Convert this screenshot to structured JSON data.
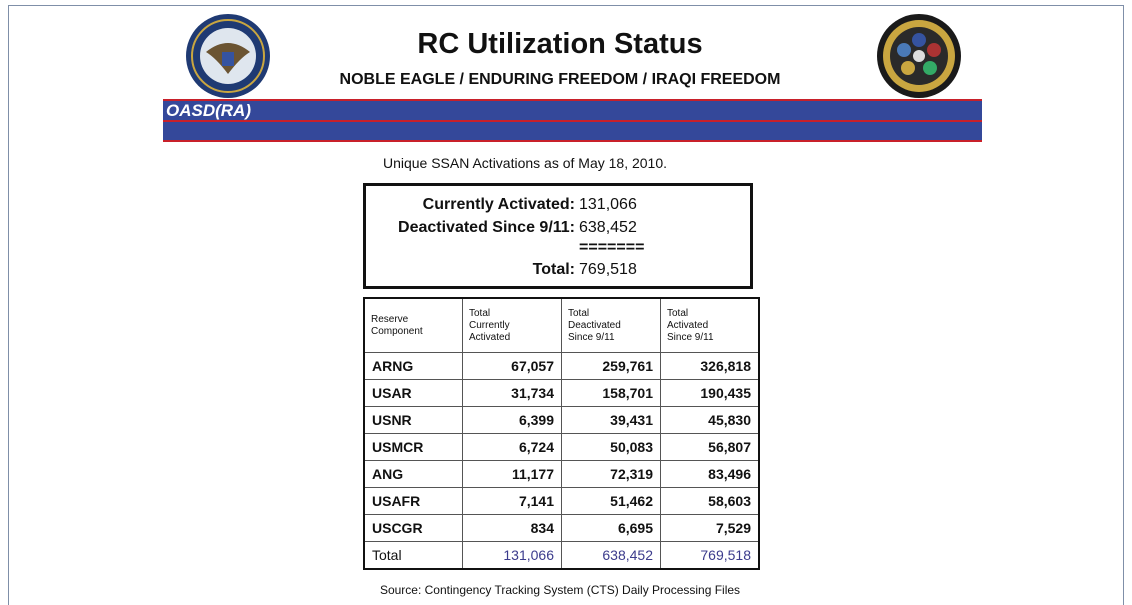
{
  "header": {
    "title": "RC Utilization Status",
    "subtitle": "NOBLE EAGLE / ENDURING FREEDOM / IRAQI FREEDOM",
    "org": "OASD(RA)"
  },
  "intro": "Unique SSAN Activations as of May 18, 2010.",
  "summary": {
    "items": [
      {
        "label": "Currently Activated:",
        "value": "131,066"
      },
      {
        "label": "Deactivated Since 9/11:",
        "value": "638,452"
      }
    ],
    "separator": "=======",
    "total": {
      "label": "Total:",
      "value": "769,518"
    }
  },
  "table": {
    "columns": [
      "Reserve Component",
      "Total Currently Activated",
      "Total Deactivated Since 9/11",
      "Total Activated Since 9/11"
    ],
    "rows": [
      [
        "ARNG",
        "67,057",
        "259,761",
        "326,818"
      ],
      [
        "USAR",
        "31,734",
        "158,701",
        "190,435"
      ],
      [
        "USNR",
        "6,399",
        "39,431",
        "45,830"
      ],
      [
        "USMCR",
        "6,724",
        "50,083",
        "56,807"
      ],
      [
        "ANG",
        "11,177",
        "72,319",
        "83,496"
      ],
      [
        "USAFR",
        "7,141",
        "51,462",
        "58,603"
      ],
      [
        "USCGR",
        "834",
        "6,695",
        "7,529"
      ]
    ],
    "total_row": [
      "Total",
      "131,066",
      "638,452",
      "769,518"
    ]
  },
  "source": "Source:  Contingency Tracking System (CTS) Daily Processing Files"
}
